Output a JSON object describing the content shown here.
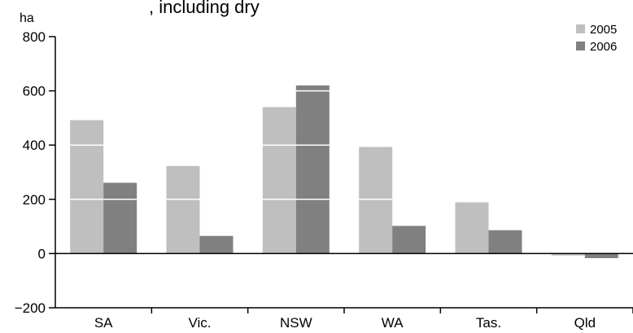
{
  "chart_data": {
    "type": "bar",
    "title": ", including dry",
    "ylabel": "ha",
    "xlabel": "",
    "categories": [
      "SA",
      "Vic.",
      "NSW",
      "WA",
      "Tas.",
      "Qld"
    ],
    "series": [
      {
        "name": "2005",
        "values": [
          492,
          323,
          540,
          393,
          189,
          -7
        ],
        "color": "#bfbfbf"
      },
      {
        "name": "2006",
        "values": [
          261,
          65,
          620,
          102,
          86,
          -17
        ],
        "color": "#808080"
      }
    ],
    "ylim": [
      -200,
      800
    ],
    "yticks": [
      {
        "value": 800,
        "label": "800"
      },
      {
        "value": 600,
        "label": "600"
      },
      {
        "value": 400,
        "label": "400"
      },
      {
        "value": 200,
        "label": "200"
      },
      {
        "value": 0,
        "label": "0"
      },
      {
        "value": -200,
        "label": "−200"
      }
    ],
    "gridlines_inside_bars": [
      200,
      400,
      600
    ],
    "grid": false,
    "legend_position": "top-right"
  }
}
